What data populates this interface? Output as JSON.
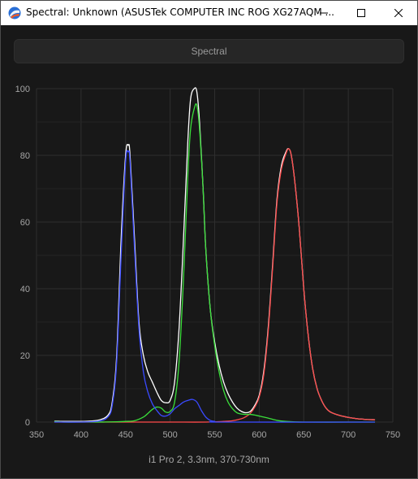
{
  "window": {
    "title": "Spectral: Unknown (ASUSTek COMPUTER INC ROG XG27AQM ...",
    "icon": "spectrum-app-icon",
    "controls": [
      "minimize-icon",
      "maximize-icon",
      "close-icon"
    ]
  },
  "toolbar": {
    "mode_label": "Spectral"
  },
  "colors": {
    "background": "#181818",
    "grid": "#2e2e2e",
    "white_curve": "#ffffff",
    "red_curve": "#ff4a4a",
    "green_curve": "#3adf3a",
    "blue_curve": "#3a4aff"
  },
  "chart_data": {
    "type": "line",
    "xlabel": "i1 Pro 2, 3.3nm, 370-730nm",
    "ylabel": "",
    "xlim": [
      350,
      750
    ],
    "ylim": [
      0,
      100
    ],
    "x_ticks": [
      350,
      400,
      450,
      500,
      550,
      600,
      650,
      700,
      750
    ],
    "y_ticks": [
      0,
      20,
      40,
      60,
      80,
      100
    ],
    "grid": true,
    "legend": "none",
    "series": [
      {
        "key": "white",
        "x": [
          370,
          380,
          390,
          400,
          410,
          420,
          430,
          435,
          440,
          445,
          450,
          453,
          455,
          460,
          465,
          470,
          475,
          480,
          485,
          490,
          495,
          500,
          505,
          510,
          515,
          520,
          523,
          527,
          530,
          533,
          537,
          540,
          545,
          550,
          555,
          560,
          565,
          570,
          575,
          580,
          585,
          590,
          595,
          600,
          605,
          610,
          615,
          620,
          625,
          630,
          633,
          636,
          640,
          645,
          650,
          655,
          660,
          665,
          670,
          675,
          680,
          690,
          700,
          710,
          720,
          730
        ],
        "y": [
          0.3,
          0.2,
          0.2,
          0.2,
          0.3,
          0.6,
          2,
          6,
          20,
          55,
          80,
          83,
          80,
          55,
          30,
          20,
          15,
          12,
          9,
          6.5,
          5.8,
          6.5,
          12,
          28,
          55,
          85,
          97,
          100,
          99,
          90,
          70,
          52,
          34,
          24,
          17,
          12,
          8.5,
          6,
          4.2,
          3.2,
          2.8,
          3.2,
          5,
          8,
          15,
          28,
          47,
          67,
          77,
          81,
          82,
          80,
          72,
          58,
          40,
          26,
          16,
          10,
          6.5,
          4.2,
          3,
          2,
          1.4,
          1,
          0.8,
          0.7
        ]
      },
      {
        "key": "red",
        "x": [
          370,
          400,
          450,
          500,
          540,
          560,
          570,
          580,
          585,
          590,
          595,
          600,
          605,
          610,
          615,
          620,
          625,
          630,
          633,
          636,
          640,
          645,
          650,
          655,
          660,
          665,
          670,
          675,
          680,
          690,
          700,
          710,
          720,
          730
        ],
        "y": [
          0,
          0,
          0,
          0,
          0,
          0.2,
          0.4,
          1,
          1.6,
          2.6,
          4.5,
          7.5,
          14,
          27,
          46,
          66,
          76,
          80.5,
          82,
          80,
          72,
          58,
          40,
          26,
          16,
          10,
          6.5,
          4.2,
          3,
          2,
          1.4,
          1,
          0.8,
          0.7
        ]
      },
      {
        "key": "green",
        "x": [
          370,
          380,
          400,
          420,
          440,
          450,
          460,
          470,
          475,
          480,
          485,
          490,
          495,
          500,
          505,
          510,
          515,
          520,
          523,
          527,
          530,
          533,
          537,
          540,
          545,
          550,
          555,
          560,
          565,
          570,
          575,
          580,
          585,
          590,
          595,
          600,
          610,
          620,
          630,
          650,
          700,
          730
        ],
        "y": [
          0.2,
          0,
          0,
          0,
          0.1,
          0.2,
          0.4,
          1.5,
          2.6,
          3.8,
          4.5,
          4.2,
          3,
          3.2,
          6,
          18,
          43,
          75,
          88,
          94,
          95,
          88,
          70,
          52,
          34,
          23,
          15,
          9.5,
          6,
          4,
          2.8,
          2.4,
          2.3,
          2.3,
          2.1,
          1.8,
          1.2,
          0.5,
          0.2,
          0,
          0,
          0
        ]
      },
      {
        "key": "blue",
        "x": [
          370,
          400,
          420,
          430,
          435,
          440,
          445,
          450,
          453,
          455,
          460,
          465,
          470,
          475,
          480,
          485,
          490,
          495,
          500,
          505,
          510,
          515,
          520,
          525,
          530,
          535,
          540,
          545,
          550,
          560,
          730
        ],
        "y": [
          0,
          0,
          0.3,
          1.5,
          5,
          18,
          50,
          78,
          81,
          78,
          52,
          28,
          15,
          9,
          5.5,
          3.5,
          2,
          1.8,
          2.5,
          4,
          5,
          6,
          6.5,
          6.8,
          6,
          3.5,
          1.5,
          0.5,
          0.2,
          0,
          0
        ]
      }
    ]
  }
}
